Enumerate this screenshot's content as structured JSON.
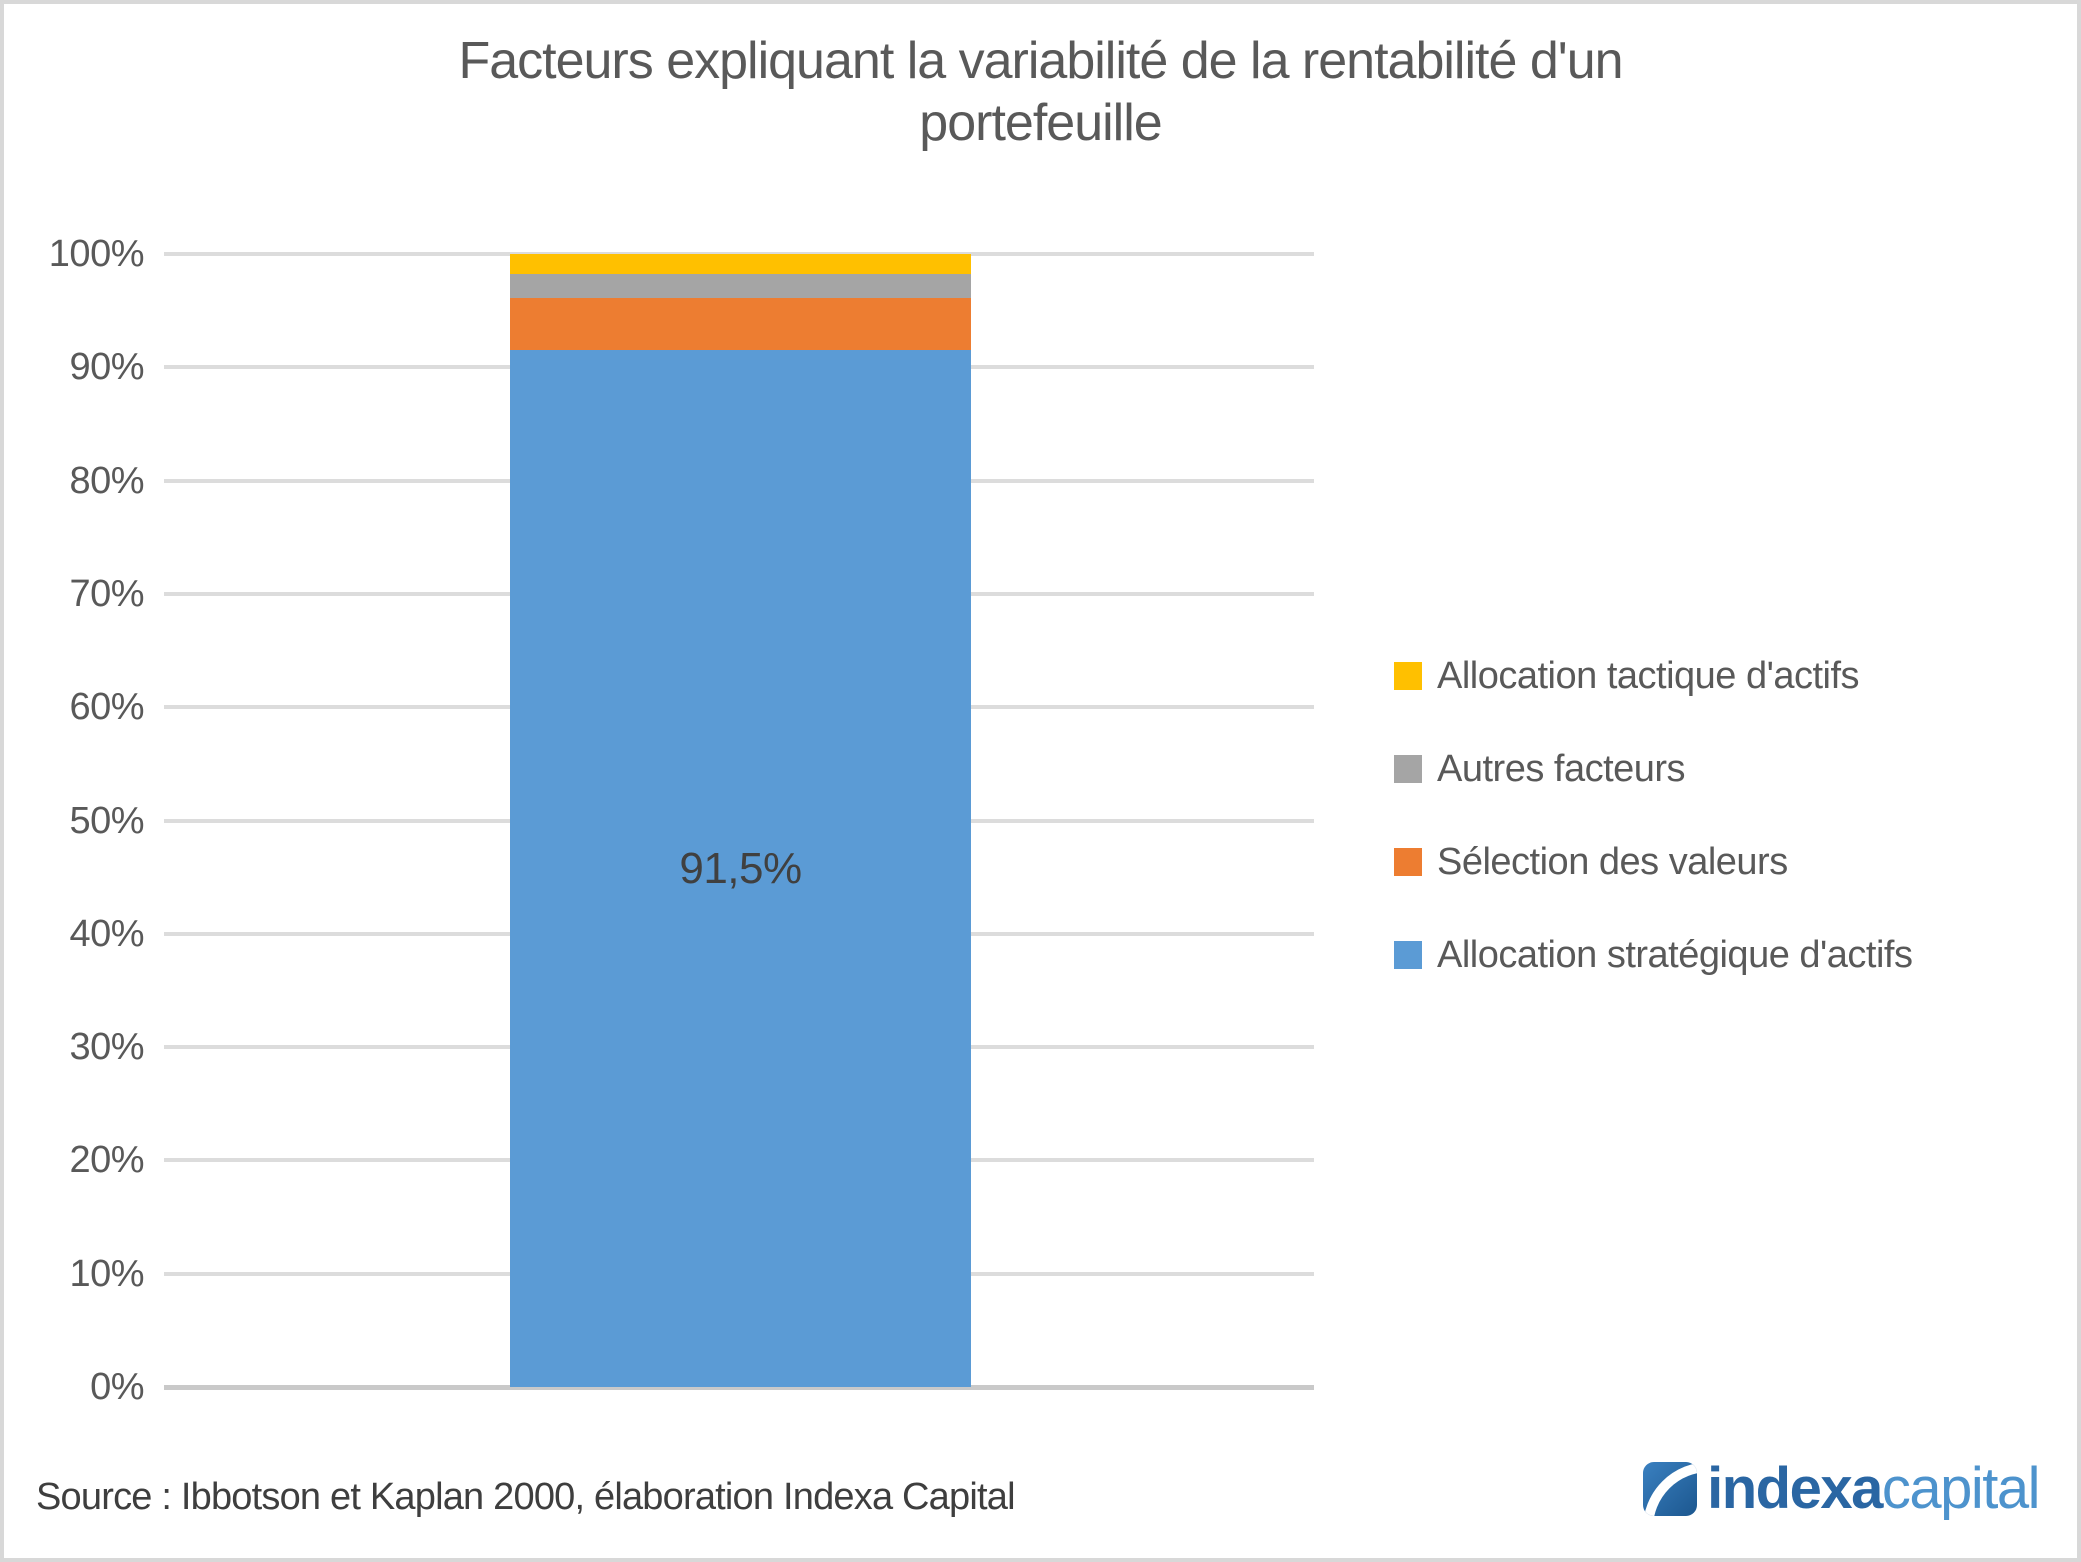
{
  "title": {
    "line1": "Facteurs expliquant la variabilité de la rentabilité d'un",
    "line2": "portefeuille"
  },
  "chart_data": {
    "type": "bar",
    "stacked": true,
    "categories": [
      ""
    ],
    "series": [
      {
        "key": "allocation-strategique",
        "name": "Allocation stratégique d'actifs",
        "value": 91.5,
        "color": "#5B9BD5",
        "data_label": "91,5%"
      },
      {
        "key": "selection-valeurs",
        "name": "Sélection des valeurs",
        "value": 4.6,
        "color": "#ED7D31",
        "data_label": ""
      },
      {
        "key": "autres-facteurs",
        "name": "Autres facteurs",
        "value": 2.1,
        "color": "#A5A5A5",
        "data_label": ""
      },
      {
        "key": "allocation-tactique",
        "name": "Allocation tactique d'actifs",
        "value": 1.8,
        "color": "#FFC000",
        "data_label": ""
      }
    ],
    "ylim": [
      0,
      100
    ],
    "yticks": [
      "0%",
      "10%",
      "20%",
      "30%",
      "40%",
      "50%",
      "60%",
      "70%",
      "80%",
      "90%",
      "100%"
    ],
    "grid": "horizontal",
    "legend_position": "right",
    "legend_order_top_to_bottom": [
      "Allocation tactique d'actifs",
      "Autres facteurs",
      "Sélection des valeurs",
      "Allocation stratégique d'actifs"
    ],
    "gridline_color": "#dcdcdc",
    "axis_line_color": "#c9c9c9",
    "tick_label_color": "#595959",
    "data_label_color": "#404040"
  },
  "source_note": "Source : Ibbotson et Kaplan 2000, élaboration Indexa Capital",
  "logo": {
    "brand_bold": "indexa",
    "brand_light": "capital",
    "bold_color": "#2a66a3",
    "light_color": "#4d93cd",
    "icon_gradient_start": "#3a80c0",
    "icon_gradient_end": "#1c578f"
  }
}
